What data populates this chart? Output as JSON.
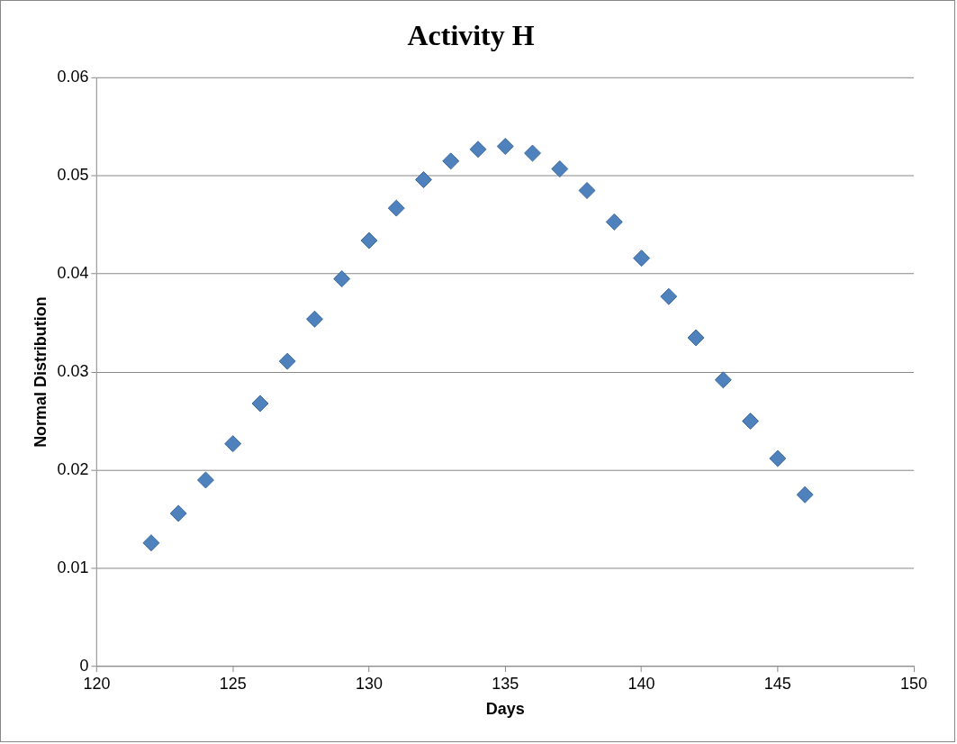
{
  "chart_data": {
    "type": "scatter",
    "title": "Activity H",
    "xlabel": "Days",
    "ylabel": "Normal Distribution",
    "x": [
      122,
      123,
      124,
      125,
      126,
      127,
      128,
      129,
      130,
      131,
      132,
      133,
      134,
      135,
      136,
      137,
      138,
      139,
      140,
      141,
      142,
      143,
      144,
      145,
      146
    ],
    "values": [
      0.0126,
      0.0156,
      0.019,
      0.0227,
      0.0268,
      0.0311,
      0.0354,
      0.0395,
      0.0434,
      0.0467,
      0.0496,
      0.0515,
      0.0527,
      0.053,
      0.0523,
      0.0507,
      0.0485,
      0.0453,
      0.0416,
      0.0377,
      0.0335,
      0.0292,
      0.025,
      0.0212,
      0.0175
    ],
    "color": "#4f81bd",
    "marker": "diamond",
    "grid": "y",
    "xlim": [
      120,
      150
    ],
    "xticks": [
      120,
      125,
      130,
      135,
      140,
      145,
      150
    ],
    "ylim": [
      0,
      0.06
    ],
    "yticks": [
      0,
      0.01,
      0.02,
      0.03,
      0.04,
      0.05,
      0.06
    ]
  }
}
